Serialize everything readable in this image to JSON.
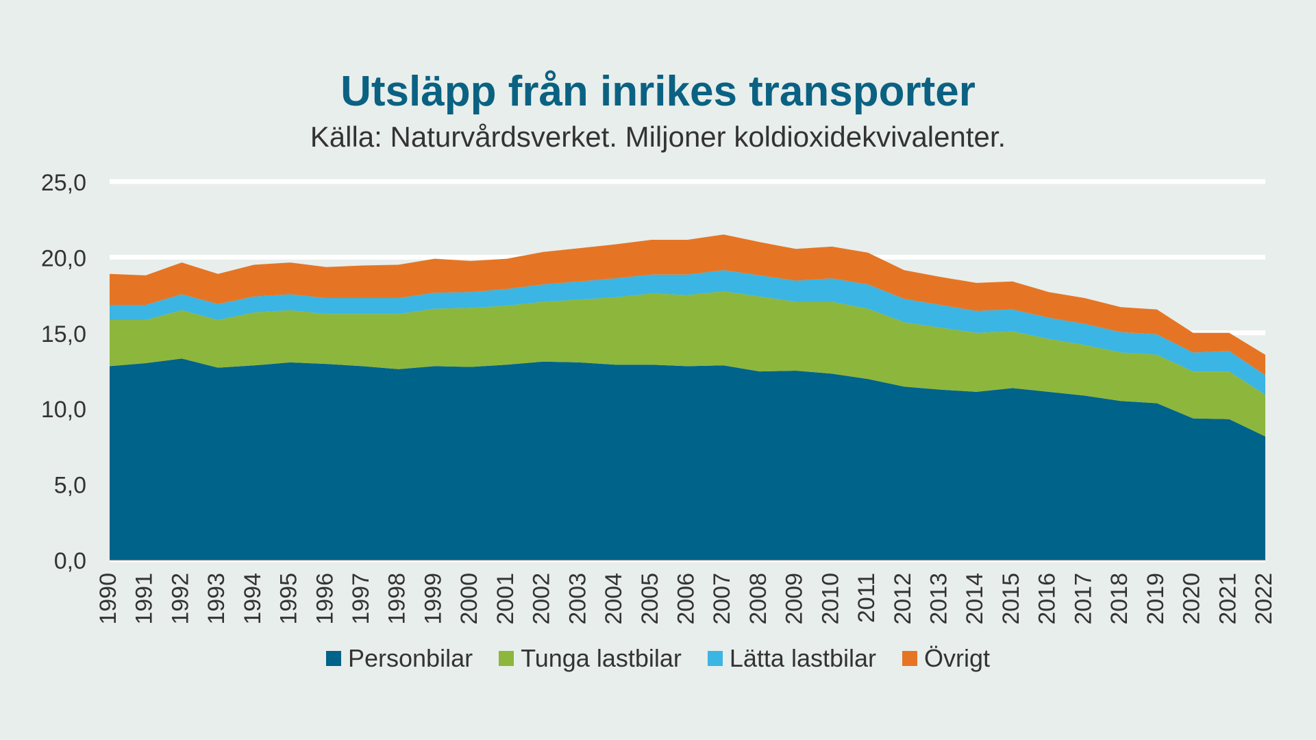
{
  "chart_data": {
    "type": "area",
    "stacked": true,
    "title": "Utsläpp från inrikes transporter",
    "subtitle": "Källa: Naturvårdsverket. Miljoner koldioxidekvivalenter.",
    "ylim": [
      0,
      25
    ],
    "yticks": [
      "0,0",
      "5,0",
      "10,0",
      "15,0",
      "20,0",
      "25,0"
    ],
    "ytick_values": [
      0,
      5,
      10,
      15,
      20,
      25
    ],
    "grid": true,
    "legend_position": "bottom",
    "x": [
      "1990",
      "1991",
      "1992",
      "1993",
      "1994",
      "1995",
      "1996",
      "1997",
      "1998",
      "1999",
      "2000",
      "2001",
      "2002",
      "2003",
      "2004",
      "2005",
      "2006",
      "2007",
      "2008",
      "2009",
      "2010",
      "2011",
      "2012",
      "2013",
      "2014",
      "2015",
      "2016",
      "2017",
      "2018",
      "2019",
      "2020",
      "2021",
      "2022"
    ],
    "series": [
      {
        "name": "Personbilar",
        "color": "#006389",
        "values": [
          12.8,
          13.0,
          13.3,
          12.7,
          12.85,
          13.05,
          12.95,
          12.8,
          12.6,
          12.8,
          12.75,
          12.9,
          13.1,
          13.05,
          12.9,
          12.9,
          12.8,
          12.85,
          12.45,
          12.5,
          12.3,
          11.95,
          11.45,
          11.25,
          11.1,
          11.35,
          11.1,
          10.85,
          10.5,
          10.35,
          9.35,
          9.3,
          8.15
        ]
      },
      {
        "name": "Tunga lastbilar",
        "color": "#8db63c",
        "values": [
          3.05,
          2.85,
          3.2,
          3.15,
          3.5,
          3.45,
          3.3,
          3.45,
          3.65,
          3.8,
          3.9,
          3.9,
          3.95,
          4.15,
          4.45,
          4.7,
          4.7,
          4.9,
          4.95,
          4.55,
          4.75,
          4.65,
          4.25,
          4.1,
          3.9,
          3.75,
          3.5,
          3.35,
          3.2,
          3.2,
          3.1,
          3.15,
          2.75
        ]
      },
      {
        "name": "Lätta lastbilar",
        "color": "#3bb5e3",
        "values": [
          1.0,
          1.0,
          1.05,
          1.05,
          1.05,
          1.05,
          1.05,
          1.05,
          1.05,
          1.05,
          1.05,
          1.1,
          1.15,
          1.2,
          1.25,
          1.25,
          1.35,
          1.4,
          1.4,
          1.4,
          1.55,
          1.6,
          1.55,
          1.5,
          1.45,
          1.45,
          1.4,
          1.4,
          1.35,
          1.35,
          1.25,
          1.35,
          1.3
        ]
      },
      {
        "name": "Övrigt",
        "color": "#e57525",
        "values": [
          2.05,
          1.95,
          2.1,
          2.0,
          2.1,
          2.1,
          2.05,
          2.15,
          2.2,
          2.25,
          2.05,
          2.0,
          2.15,
          2.2,
          2.25,
          2.3,
          2.3,
          2.35,
          2.2,
          2.1,
          2.1,
          2.1,
          1.9,
          1.85,
          1.85,
          1.85,
          1.7,
          1.7,
          1.65,
          1.65,
          1.3,
          1.2,
          1.35
        ]
      }
    ]
  }
}
